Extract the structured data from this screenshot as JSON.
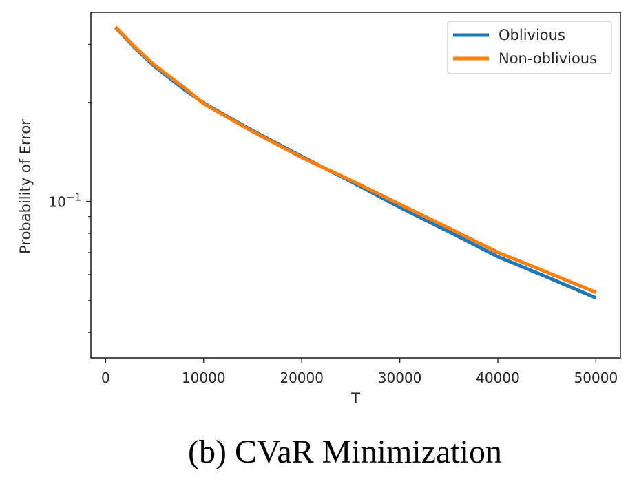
{
  "caption": "(b) CVaR Minimization",
  "chart_data": {
    "type": "line",
    "title": "",
    "xlabel": "T",
    "ylabel": "Probability of Error",
    "yscale": "log",
    "xlim": [
      -1500,
      52500
    ],
    "ylim": [
      0.0335,
      0.375
    ],
    "xticks": [
      0,
      10000,
      20000,
      30000,
      40000,
      50000
    ],
    "xtick_labels": [
      "0",
      "10000",
      "20000",
      "30000",
      "40000",
      "50000"
    ],
    "yticks": [
      0.1
    ],
    "ytick_labels": [
      "10",
      "−1"
    ],
    "y_minor_ticks": [
      0.04,
      0.05,
      0.06,
      0.07,
      0.08,
      0.09,
      0.2,
      0.3
    ],
    "grid": false,
    "legend": "top-right",
    "series": [
      {
        "name": "Oblivious",
        "color": "#1f77b4",
        "x": [
          1000,
          3000,
          5000,
          8000,
          10000,
          15000,
          20000,
          25000,
          30000,
          35000,
          40000,
          45000,
          50000
        ],
        "y": [
          0.338,
          0.292,
          0.257,
          0.219,
          0.199,
          0.164,
          0.137,
          0.115,
          0.096,
          0.081,
          0.068,
          0.059,
          0.051
        ]
      },
      {
        "name": "Non-oblivious",
        "color": "#ff7f0e",
        "x": [
          1000,
          3000,
          5000,
          8000,
          10000,
          15000,
          20000,
          25000,
          30000,
          35000,
          40000,
          45000,
          50000
        ],
        "y": [
          0.339,
          0.294,
          0.259,
          0.222,
          0.198,
          0.163,
          0.136,
          0.116,
          0.098,
          0.083,
          0.07,
          0.061,
          0.053
        ]
      }
    ]
  }
}
